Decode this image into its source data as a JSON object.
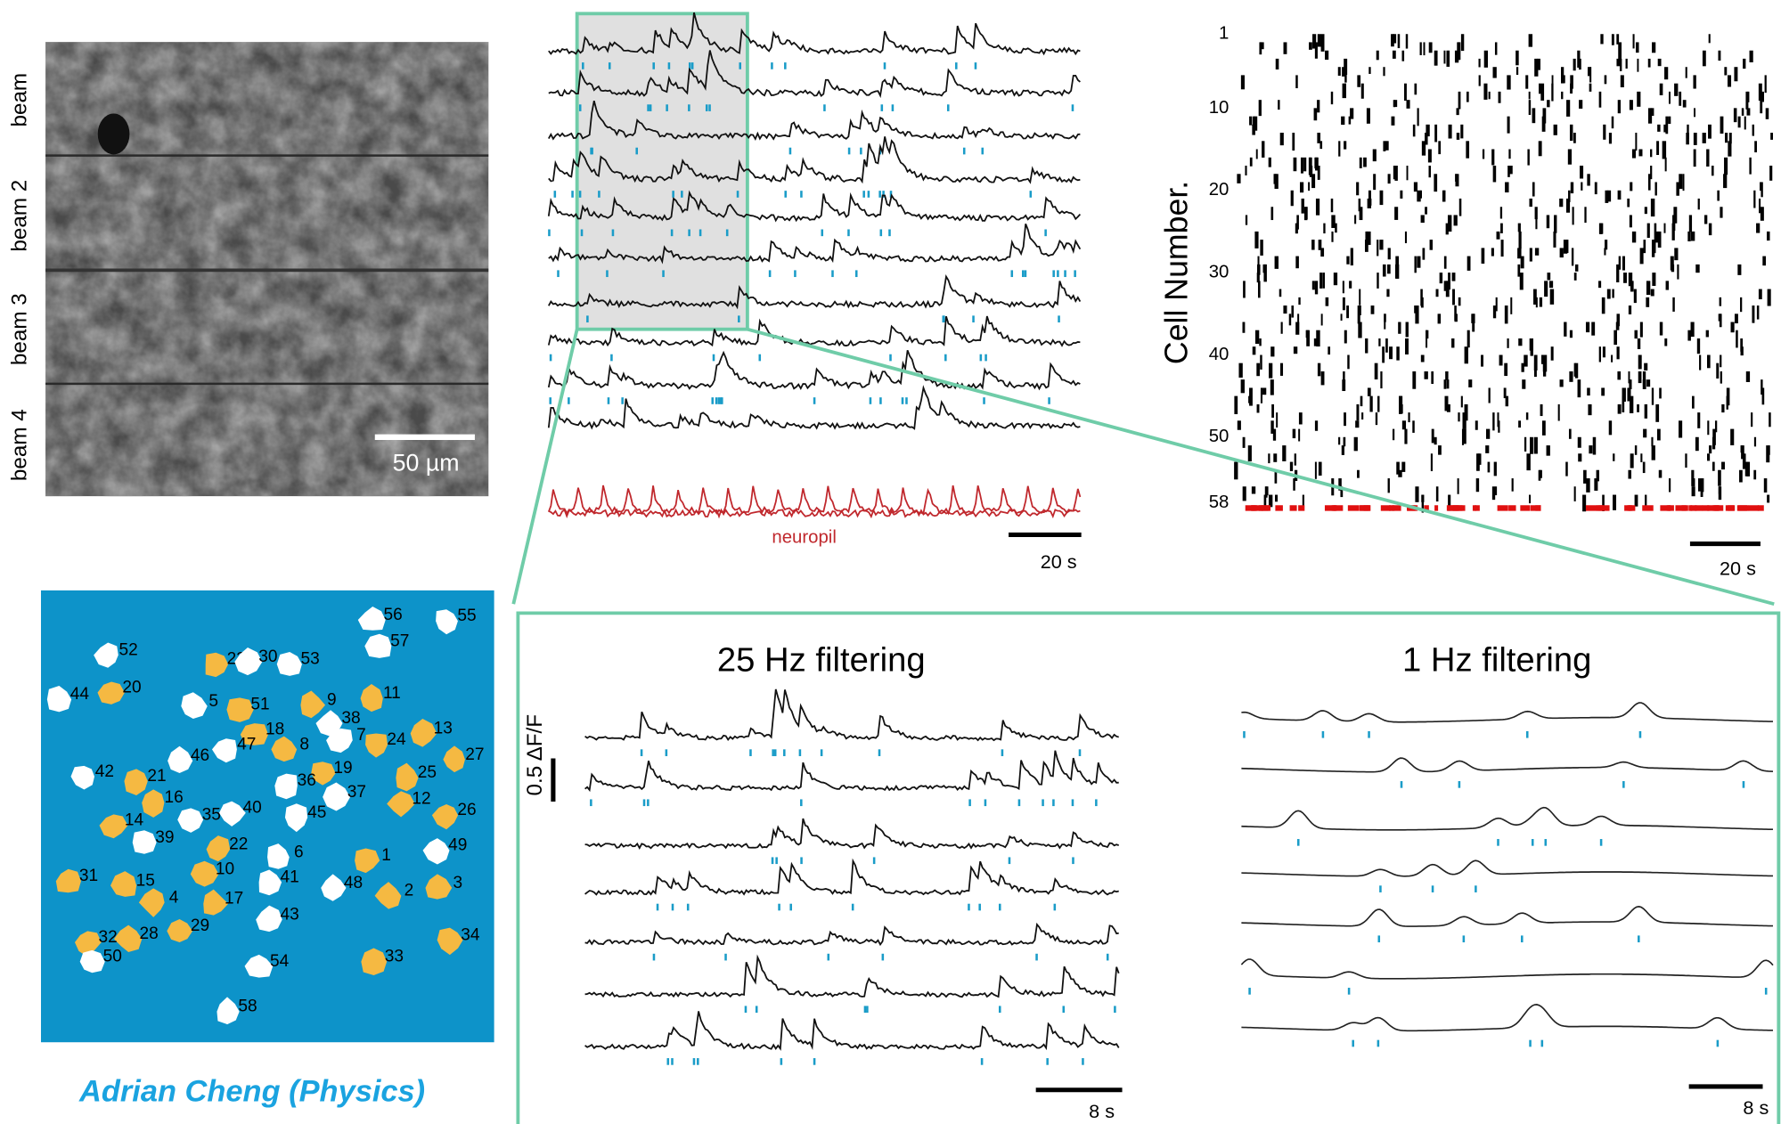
{
  "microscope": {
    "beam_labels": [
      "beam",
      "beam 2",
      "beam 3",
      "beam 4"
    ],
    "scale_bar": "50 µm"
  },
  "traces": {
    "neuropil_label": "neuropil",
    "scale_bar": "20 s"
  },
  "raster": {
    "ylabel": "Cell Number.",
    "yticks": [
      1,
      10,
      20,
      30,
      40,
      50,
      58
    ],
    "scale_bar": "20 s"
  },
  "roi_map": {
    "labels": [
      52,
      56,
      57,
      55,
      23,
      30,
      53,
      44,
      20,
      5,
      51,
      9,
      11,
      18,
      38,
      7,
      13,
      46,
      47,
      8,
      24,
      27,
      42,
      19,
      25,
      21,
      36,
      16,
      37,
      12,
      14,
      35,
      40,
      45,
      26,
      39,
      22,
      6,
      1,
      49,
      31,
      15,
      10,
      41,
      48,
      2,
      3,
      4,
      17,
      43,
      29,
      28,
      32,
      34,
      50,
      54,
      33,
      58
    ]
  },
  "credit": "Adrian Cheng (Physics)",
  "filtering": {
    "left_title": "25 Hz filtering",
    "right_title": "1 Hz filtering",
    "amplitude_bar": "0.5 ΔF/F",
    "left_scale": "8 s",
    "right_scale": "8 s"
  }
}
